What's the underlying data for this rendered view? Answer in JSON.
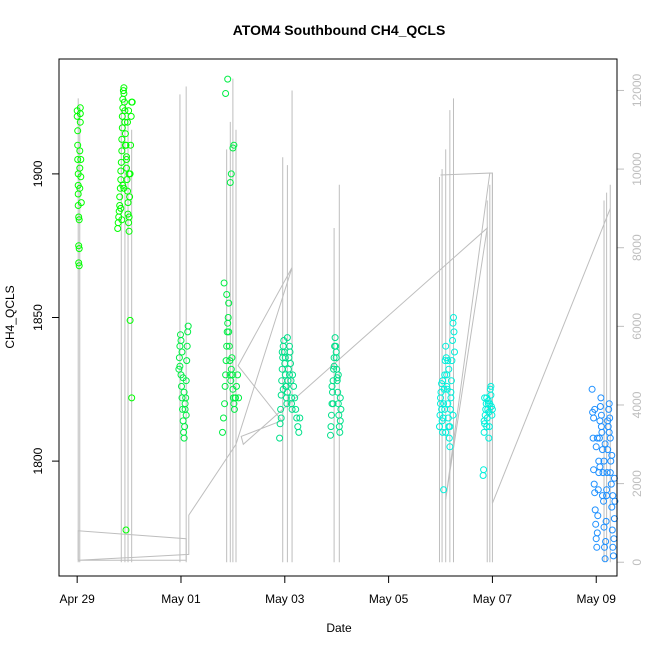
{
  "chart_data": {
    "type": "scatter",
    "title": "ATOM4 Southbound CH4_QCLS",
    "xlabel": "Date",
    "ylabel": "CH4_QCLS",
    "x_ticks": [
      "Apr 29",
      "May 01",
      "May 03",
      "May 05",
      "May 07",
      "May 09"
    ],
    "x_tick_values": [
      0,
      2,
      4,
      6,
      8,
      10
    ],
    "xlim": [
      -0.35,
      10.4
    ],
    "y_ticks": [
      "1800",
      "1850",
      "1900"
    ],
    "y_tick_values": [
      1800,
      1850,
      1900
    ],
    "ylim": [
      1760,
      1940
    ],
    "y2_ticks": [
      "0",
      "2000",
      "4000",
      "6000",
      "8000",
      "10000",
      "12000"
    ],
    "y2_tick_values": [
      0,
      2000,
      4000,
      6000,
      8000,
      10000,
      12000
    ],
    "y2lim": [
      -350,
      12800
    ],
    "y2_color": "#bebebe",
    "grid": false,
    "legend": "none",
    "altitude_series": {
      "color": "#bebebe",
      "spikes": [
        {
          "x": 0.02,
          "top": 11800
        },
        {
          "x": 0.05,
          "top": 11600
        },
        {
          "x": 0.85,
          "top": 11500
        },
        {
          "x": 0.92,
          "top": 11800
        },
        {
          "x": 0.98,
          "top": 11400
        },
        {
          "x": 1.05,
          "top": 11000
        },
        {
          "x": 1.98,
          "top": 11900
        },
        {
          "x": 2.1,
          "top": 12100
        },
        {
          "x": 2.88,
          "top": 10500
        },
        {
          "x": 2.95,
          "top": 11200
        },
        {
          "x": 3.0,
          "top": 12300
        },
        {
          "x": 3.06,
          "top": 11000
        },
        {
          "x": 3.96,
          "top": 10300
        },
        {
          "x": 4.05,
          "top": 10100
        },
        {
          "x": 4.14,
          "top": 12000
        },
        {
          "x": 4.95,
          "top": 8500
        },
        {
          "x": 5.05,
          "top": 9600
        },
        {
          "x": 6.98,
          "top": 9800
        },
        {
          "x": 7.03,
          "top": 10000
        },
        {
          "x": 7.1,
          "top": 10500
        },
        {
          "x": 7.18,
          "top": 11500
        },
        {
          "x": 7.25,
          "top": 11800
        },
        {
          "x": 7.9,
          "top": 9200
        },
        {
          "x": 7.95,
          "top": 9600
        },
        {
          "x": 8.0,
          "top": 9900
        },
        {
          "x": 10.15,
          "top": 9200
        },
        {
          "x": 10.2,
          "top": 9400
        },
        {
          "x": 10.27,
          "top": 9600
        }
      ],
      "path": [
        [
          0.02,
          50
        ],
        [
          0.02,
          800
        ],
        [
          2.1,
          600
        ],
        [
          2.1,
          50
        ],
        [
          0.02,
          50
        ],
        [
          2.15,
          200
        ],
        [
          2.15,
          1200
        ],
        [
          3.06,
          3000
        ],
        [
          4.14,
          7500
        ],
        [
          3.1,
          5000
        ],
        [
          3.94,
          3600
        ],
        [
          3.16,
          3200
        ],
        [
          3.2,
          3000
        ],
        [
          7.9,
          8500
        ],
        [
          7.1,
          1600
        ],
        [
          7.95,
          9900
        ],
        [
          7.0,
          9850
        ],
        [
          8.0,
          9900
        ],
        [
          8.0,
          1500
        ],
        [
          10.27,
          9000
        ]
      ]
    },
    "series": [
      {
        "color": "#00ff00",
        "x": [
          0.0,
          0.0,
          0.01,
          0.01,
          0.01,
          0.02,
          0.02,
          0.02,
          0.02,
          0.03,
          0.03,
          0.03,
          0.04,
          0.04,
          0.04,
          0.05,
          0.05,
          0.05,
          0.06,
          0.06,
          0.06,
          0.07,
          0.07,
          0.08,
          0.78,
          0.79,
          0.8,
          0.81,
          0.82,
          0.82,
          0.83,
          0.84,
          0.84,
          0.85,
          0.86,
          0.86,
          0.87,
          0.87,
          0.88,
          0.88,
          0.89,
          0.9,
          0.9,
          0.91,
          0.92,
          0.92,
          0.93,
          0.94,
          0.95,
          0.95,
          0.96,
          0.97,
          0.98,
          0.98,
          0.99,
          1.0,
          1.0,
          1.01,
          1.02,
          1.03,
          1.04,
          1.05,
          1.06,
          0.84,
          0.88,
          0.93,
          0.97,
          1.0,
          0.86,
          0.9,
          0.95,
          0.99,
          1.02,
          1.05,
          0.94
        ],
        "y": [
          1922,
          1920,
          1915,
          1910,
          1905,
          1900,
          1896,
          1893,
          1889,
          1885,
          1875,
          1869,
          1868,
          1874,
          1884,
          1895,
          1902,
          1908,
          1921,
          1923,
          1918,
          1905,
          1899,
          1890,
          1881,
          1883,
          1885,
          1887,
          1889,
          1892,
          1895,
          1898,
          1901,
          1904,
          1908,
          1912,
          1916,
          1920,
          1923,
          1926,
          1929,
          1930,
          1928,
          1925,
          1922,
          1918,
          1914,
          1910,
          1906,
          1902,
          1898,
          1894,
          1890,
          1886,
          1883,
          1880,
          1885,
          1892,
          1900,
          1910,
          1920,
          1925,
          1925,
          1888,
          1896,
          1910,
          1918,
          1900,
          1884,
          1895,
          1905,
          1922,
          1849,
          1822,
          1776
        ]
      },
      {
        "color": "#00ee44",
        "x": [
          1.96,
          1.97,
          1.98,
          1.99,
          2.0,
          2.01,
          2.02,
          2.03,
          2.04,
          2.05,
          2.06,
          2.07,
          2.08,
          2.09,
          2.1,
          2.11,
          2.12,
          2.13,
          2.14,
          1.98,
          2.02,
          2.06,
          2.1,
          2.0,
          2.04,
          2.08,
          2.8,
          2.82,
          2.84,
          2.85,
          2.86,
          2.87,
          2.88,
          2.89,
          2.9,
          2.91,
          2.92,
          2.93,
          2.94,
          2.95,
          2.96,
          2.97,
          2.98,
          2.99,
          3.0,
          3.01,
          3.02,
          3.03,
          3.05,
          3.07,
          3.09,
          3.11,
          2.83,
          2.88,
          2.92,
          2.97,
          3.02,
          2.86,
          2.9,
          2.95,
          3.0,
          3.04
        ],
        "y": [
          1832,
          1836,
          1840,
          1844,
          1830,
          1826,
          1822,
          1818,
          1814,
          1810,
          1808,
          1812,
          1818,
          1822,
          1828,
          1835,
          1840,
          1845,
          1847,
          1833,
          1838,
          1824,
          1816,
          1842,
          1829,
          1820,
          1810,
          1815,
          1820,
          1826,
          1830,
          1835,
          1840,
          1845,
          1848,
          1850,
          1845,
          1840,
          1835,
          1830,
          1828,
          1832,
          1836,
          1830,
          1825,
          1822,
          1820,
          1818,
          1822,
          1826,
          1830,
          1822,
          1862,
          1858,
          1855,
          1900,
          1910,
          1928,
          1933,
          1897,
          1909,
          1822
        ]
      },
      {
        "color": "#00e08a",
        "x": [
          3.9,
          3.91,
          3.92,
          3.93,
          3.94,
          3.95,
          3.96,
          3.97,
          3.98,
          3.99,
          4.0,
          4.01,
          4.02,
          4.03,
          4.04,
          4.05,
          4.06,
          4.07,
          4.08,
          4.09,
          4.1,
          4.11,
          4.12,
          4.13,
          4.14,
          3.93,
          3.97,
          4.01,
          4.05,
          4.09,
          4.13,
          3.95,
          4.03,
          4.15,
          4.17,
          4.19,
          4.21,
          4.23,
          4.25,
          4.27,
          4.29,
          4.88,
          4.89,
          4.9,
          4.91,
          4.92,
          4.93,
          4.94,
          4.95,
          4.96,
          4.97,
          4.98,
          4.99,
          5.0,
          5.01,
          5.02,
          5.03,
          5.04,
          5.05,
          5.06,
          5.07,
          5.08,
          4.91,
          4.95,
          4.99,
          5.03,
          5.07,
          4.93,
          5.01
        ],
        "y": [
          1808,
          1813,
          1818,
          1823,
          1828,
          1832,
          1836,
          1840,
          1842,
          1838,
          1834,
          1830,
          1826,
          1822,
          1820,
          1824,
          1828,
          1832,
          1836,
          1840,
          1838,
          1834,
          1828,
          1822,
          1818,
          1815,
          1825,
          1836,
          1843,
          1830,
          1820,
          1838,
          1826,
          1830,
          1826,
          1822,
          1818,
          1815,
          1812,
          1810,
          1815,
          1809,
          1812,
          1816,
          1820,
          1824,
          1828,
          1832,
          1836,
          1840,
          1843,
          1840,
          1836,
          1832,
          1828,
          1824,
          1820,
          1816,
          1812,
          1810,
          1814,
          1818,
          1826,
          1833,
          1838,
          1830,
          1822,
          1820,
          1829
        ]
      },
      {
        "color": "#00f0dc",
        "x": [
          6.98,
          6.99,
          7.0,
          7.01,
          7.02,
          7.03,
          7.04,
          7.05,
          7.06,
          7.07,
          7.08,
          7.09,
          7.1,
          7.11,
          7.12,
          7.13,
          7.14,
          7.15,
          7.16,
          7.17,
          7.18,
          7.19,
          7.2,
          7.21,
          7.22,
          7.23,
          7.24,
          7.25,
          7.26,
          7.27,
          7.0,
          7.04,
          7.08,
          7.12,
          7.16,
          7.2,
          7.24,
          7.02,
          7.1,
          7.18,
          7.06,
          7.14,
          7.82,
          7.83,
          7.84,
          7.85,
          7.86,
          7.87,
          7.88,
          7.89,
          7.9,
          7.91,
          7.92,
          7.93,
          7.94,
          7.95,
          7.96,
          7.97,
          7.98,
          7.99,
          8.0,
          7.85,
          7.89,
          7.93,
          7.97,
          7.84,
          7.92
        ],
        "y": [
          1812,
          1816,
          1820,
          1824,
          1818,
          1814,
          1810,
          1815,
          1820,
          1825,
          1830,
          1835,
          1840,
          1836,
          1830,
          1825,
          1820,
          1815,
          1812,
          1808,
          1812,
          1818,
          1822,
          1828,
          1835,
          1842,
          1848,
          1850,
          1845,
          1838,
          1822,
          1828,
          1818,
          1826,
          1832,
          1824,
          1816,
          1827,
          1810,
          1805,
          1790,
          1835,
          1795,
          1797,
          1810,
          1813,
          1816,
          1818,
          1820,
          1822,
          1815,
          1818,
          1821,
          1817,
          1812,
          1820,
          1825,
          1823,
          1819,
          1816,
          1818,
          1822,
          1812,
          1808,
          1826,
          1814,
          1820
        ]
      },
      {
        "color": "#1e90ff",
        "x": [
          9.92,
          9.93,
          9.94,
          9.95,
          9.96,
          9.97,
          9.98,
          9.99,
          10.0,
          10.01,
          10.02,
          10.03,
          10.04,
          10.05,
          10.06,
          10.07,
          10.08,
          10.09,
          10.1,
          10.11,
          10.12,
          10.13,
          10.14,
          10.15,
          10.16,
          10.17,
          10.18,
          10.19,
          10.2,
          10.21,
          10.22,
          10.23,
          10.24,
          10.25,
          10.26,
          10.27,
          10.28,
          10.29,
          10.3,
          10.31,
          10.32,
          10.33,
          10.34,
          10.35,
          10.36,
          9.95,
          10.0,
          10.05,
          10.1,
          10.15,
          10.2,
          10.25,
          10.3,
          10.35,
          9.97,
          10.02,
          10.07,
          10.12,
          10.17,
          10.22,
          10.27,
          10.32
        ],
        "y": [
          1825,
          1817,
          1808,
          1797,
          1792,
          1789,
          1783,
          1778,
          1773,
          1770,
          1775,
          1781,
          1790,
          1800,
          1808,
          1814,
          1819,
          1822,
          1816,
          1810,
          1804,
          1796,
          1786,
          1777,
          1770,
          1766,
          1772,
          1779,
          1788,
          1796,
          1804,
          1812,
          1818,
          1820,
          1815,
          1808,
          1800,
          1792,
          1784,
          1776,
          1770,
          1767,
          1773,
          1780,
          1786,
          1815,
          1805,
          1796,
          1812,
          1800,
          1790,
          1810,
          1802,
          1794,
          1818,
          1808,
          1798,
          1788,
          1806,
          1814,
          1796,
          1788
        ]
      }
    ]
  }
}
